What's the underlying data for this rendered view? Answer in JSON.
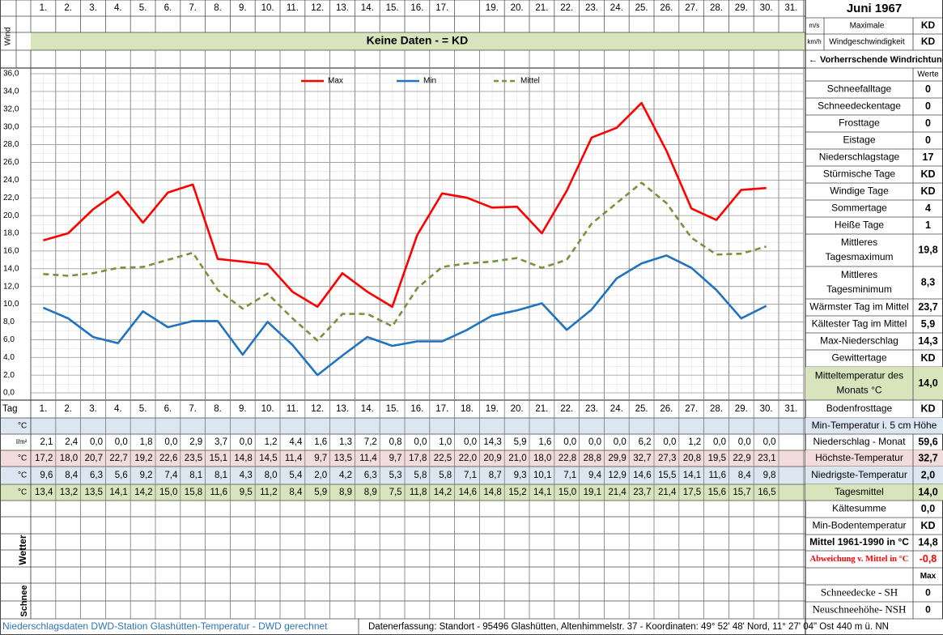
{
  "top_days": [
    "1.",
    "2.",
    "3.",
    "4.",
    "5.",
    "6.",
    "7.",
    "8.",
    "9.",
    "10.",
    "11.",
    "12.",
    "13.",
    "14.",
    "15.",
    "16.",
    "17.",
    null,
    "19.",
    "20.",
    "21.",
    "22.",
    "23.",
    "24.",
    "25.",
    "26.",
    "27.",
    "28.",
    "29.",
    "30.",
    "31."
  ],
  "wind": {
    "label": "Wind",
    "no_data": "Keine Daten -  = KD",
    "color": "#d8e4bc"
  },
  "chart_data": {
    "type": "line",
    "categories": [
      "1.",
      "2.",
      "3.",
      "4.",
      "5.",
      "6.",
      "7.",
      "8.",
      "9.",
      "10.",
      "11.",
      "12.",
      "13.",
      "14.",
      "15.",
      "16.",
      "17.",
      "18.",
      "19.",
      "20.",
      "21.",
      "22.",
      "23.",
      "24.",
      "25.",
      "26.",
      "27.",
      "28.",
      "29.",
      "30.",
      "31."
    ],
    "series": [
      {
        "name": "Max",
        "color": "#ff0000",
        "row_color": "#f2dcdb",
        "values": [
          17.2,
          18.0,
          20.7,
          22.7,
          19.2,
          22.6,
          23.5,
          15.1,
          14.8,
          14.5,
          11.4,
          9.7,
          13.5,
          11.4,
          9.7,
          17.8,
          22.5,
          22.0,
          20.9,
          21.0,
          18.0,
          22.8,
          28.8,
          29.9,
          32.7,
          27.3,
          20.8,
          19.5,
          22.9,
          23.1,
          null
        ],
        "value_labels": [
          "17,2",
          "18,0",
          "20,7",
          "22,7",
          "19,2",
          "22,6",
          "23,5",
          "15,1",
          "14,8",
          "14,5",
          "11,4",
          "9,7",
          "13,5",
          "11,4",
          "9,7",
          "17,8",
          "22,5",
          "22,0",
          "20,9",
          "21,0",
          "18,0",
          "22,8",
          "28,8",
          "29,9",
          "32,7",
          "27,3",
          "20,8",
          "19,5",
          "22,9",
          "23,1",
          null
        ]
      },
      {
        "name": "Min",
        "color": "#1f73c0",
        "row_color": "#dce6f1",
        "values": [
          9.6,
          8.4,
          6.3,
          5.6,
          9.2,
          7.4,
          8.1,
          8.1,
          4.3,
          8.0,
          5.4,
          2.0,
          4.2,
          6.3,
          5.3,
          5.8,
          5.8,
          7.1,
          8.7,
          9.3,
          10.1,
          7.1,
          9.4,
          12.9,
          14.6,
          15.5,
          14.1,
          11.6,
          8.4,
          9.8,
          null
        ],
        "value_labels": [
          "9,6",
          "8,4",
          "6,3",
          "5,6",
          "9,2",
          "7,4",
          "8,1",
          "8,1",
          "4,3",
          "8,0",
          "5,4",
          "2,0",
          "4,2",
          "6,3",
          "5,3",
          "5,8",
          "5,8",
          "7,1",
          "8,7",
          "9,3",
          "10,1",
          "7,1",
          "9,4",
          "12,9",
          "14,6",
          "15,5",
          "14,1",
          "11,6",
          "8,4",
          "9,8",
          null
        ]
      },
      {
        "name": "Mittel",
        "color": "#77933c",
        "dashed": true,
        "row_color": "#d8e4bc",
        "values": [
          13.4,
          13.2,
          13.5,
          14.1,
          14.2,
          15.0,
          15.8,
          11.6,
          9.5,
          11.2,
          8.4,
          5.9,
          8.9,
          8.9,
          7.5,
          11.8,
          14.2,
          14.6,
          14.8,
          15.2,
          14.1,
          15.0,
          19.1,
          21.4,
          23.7,
          21.4,
          17.5,
          15.6,
          15.7,
          16.5,
          null
        ],
        "value_labels": [
          "13,4",
          "13,2",
          "13,5",
          "14,1",
          "14,2",
          "15,0",
          "15,8",
          "11,6",
          "9,5",
          "11,2",
          "8,4",
          "5,9",
          "8,9",
          "8,9",
          "7,5",
          "11,8",
          "14,2",
          "14,6",
          "14,8",
          "15,2",
          "14,1",
          "15,0",
          "19,1",
          "21,4",
          "23,7",
          "21,4",
          "17,5",
          "15,6",
          "15,7",
          "16,5",
          null
        ]
      }
    ],
    "ylim": [
      0,
      36
    ],
    "yticks": [
      {
        "value": 0,
        "label": "0,0"
      },
      {
        "value": 2,
        "label": "2,0"
      },
      {
        "value": 4,
        "label": "4,0"
      },
      {
        "value": 6,
        "label": "6,0"
      },
      {
        "value": 8,
        "label": "8,0"
      },
      {
        "value": 10,
        "label": "10,0"
      },
      {
        "value": 12,
        "label": "12,0"
      },
      {
        "value": 14,
        "label": "14,0"
      },
      {
        "value": 16,
        "label": "16,0"
      },
      {
        "value": 18,
        "label": "18,0"
      },
      {
        "value": 20,
        "label": "20,0"
      },
      {
        "value": 22,
        "label": "22,0"
      },
      {
        "value": 24,
        "label": "24,0"
      },
      {
        "value": 26,
        "label": "26,0"
      },
      {
        "value": 28,
        "label": "28,0"
      },
      {
        "value": 30,
        "label": "30,0"
      },
      {
        "value": 32,
        "label": "32,0"
      },
      {
        "value": 34,
        "label": "34,0"
      },
      {
        "value": 36,
        "label": "36,0"
      }
    ],
    "grid": true,
    "legend": "top"
  },
  "row_labels": {
    "day": "Tag",
    "blue_row": "°C",
    "precip": "l/m²",
    "max": "°C",
    "min": "°C",
    "mean": "°C",
    "weather": "Wetter",
    "snow": "Schnee"
  },
  "precipitation": [
    "2,1",
    "2,4",
    "0,0",
    "0,0",
    "1,8",
    "0,0",
    "2,9",
    "3,7",
    "0,0",
    "1,2",
    "4,4",
    "1,6",
    "1,3",
    "7,2",
    "0,8",
    "0,0",
    "1,0",
    "0,0",
    "14,3",
    "5,9",
    "1,6",
    "0,0",
    "0,0",
    "0,0",
    "6,2",
    "0,0",
    "1,2",
    "0,0",
    "0,0",
    "0,0"
  ],
  "month": "Juni 1967",
  "wind_speed": {
    "label": [
      "Maximale",
      "Windgeschwindigkeit"
    ],
    "rows": [
      {
        "unit": "m/s",
        "value": "KD"
      },
      {
        "unit": "km/h",
        "value": "KD"
      }
    ]
  },
  "wind_direction": "← Vorherrschende Windrichtung",
  "values_header": "Werte",
  "stats": [
    {
      "label": "Schneefalltage",
      "value": 0
    },
    {
      "label": "Schneedeckentage",
      "value": 0
    },
    {
      "label": "Frosttage",
      "value": 0
    },
    {
      "label": "Eistage",
      "value": 0
    },
    {
      "label": "Niederschlagstage",
      "value": 17
    },
    {
      "label": "Stürmische Tage",
      "value": "KD"
    },
    {
      "label": "Windige Tage",
      "value": "KD"
    },
    {
      "label": "Sommertage",
      "value": 4
    },
    {
      "label": "Heiße Tage",
      "value": 1
    },
    {
      "label": [
        "Mittleres",
        "Tagesmaximum"
      ],
      "value": "19,8"
    },
    {
      "label": [
        "Mittleres",
        "Tagesminimum"
      ],
      "value": "8,3"
    },
    {
      "label": "Wärmster Tag im Mittel",
      "value": "23,7"
    },
    {
      "label": "Kältester Tag im Mittel",
      "value": "5,9"
    },
    {
      "label": "Max-Niederschlag",
      "value": "14,3"
    },
    {
      "label": "Gewittertage",
      "value": "KD"
    },
    {
      "label": [
        "Mitteltemperatur des",
        "Monats °C"
      ],
      "value": "14,0",
      "color": "#d8e4bc"
    },
    {
      "label": "Bodenfrosttage",
      "value": "KD"
    },
    {
      "label": "Min-Temperatur i. 5 cm Höhe",
      "color": "#dce6f1"
    },
    {
      "label": "Niederschlag - Monat",
      "value": "59,6"
    },
    {
      "label": "Höchste-Temperatur",
      "value": "32,7",
      "color": "#f2dcdb"
    },
    {
      "label": "Niedrigste-Temperatur",
      "value": "2,0",
      "color": "#dce6f1"
    },
    {
      "label": "Tagesmittel",
      "value": "14,0",
      "color": "#d8e4bc"
    },
    {
      "label": "Kältesumme",
      "value": "0,0"
    },
    {
      "label": "Min-Bodentemperatur",
      "value": "KD"
    },
    {
      "label": "Mittel 1961-1990 in °C",
      "value": "14,8",
      "bold": true
    },
    {
      "label": "Abweichung v. Mittel in °C",
      "value": "-0,8",
      "bold": true,
      "text_color": "#ff0000"
    }
  ],
  "snow": {
    "header": "Max",
    "rows": [
      {
        "label": "Schneedecke -  SH",
        "value": 0
      },
      {
        "label": "Neuschneehöhe- NSH",
        "value": 0
      }
    ]
  },
  "footer": {
    "source": "Niederschlagsdaten DWD-Station Glashütten-Temperatur -  DWD gerechnet",
    "location": "Datenerfassung: Standort - 95496 Glashütten, Altenhimmelstr. 37 - Koordinaten: 49° 52' 48' Nord,  11° 27' 04\" Ost   440 m ü. NN"
  }
}
